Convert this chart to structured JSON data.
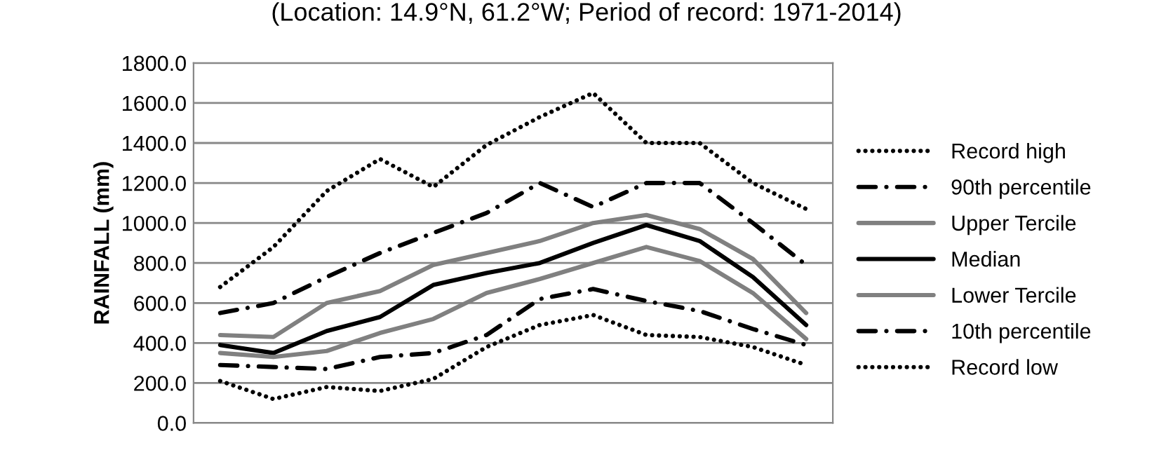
{
  "chart_data": {
    "type": "line",
    "title": "(Location: 14.9°N, 61.2°W; Period of record: 1971-2014)",
    "ylabel": "RAINFALL (mm)",
    "categories": [
      null,
      null,
      null,
      null,
      null,
      null,
      null,
      null,
      null,
      null,
      null,
      null
    ],
    "series": [
      {
        "name": "Record high",
        "color": "#000000",
        "line_style": "dotted",
        "values": [
          680,
          880,
          1160,
          1320,
          1180,
          1390,
          1530,
          1650,
          1400,
          1400,
          1200,
          1070
        ]
      },
      {
        "name": "90th percentile",
        "color": "#000000",
        "line_style": "dashdot",
        "values": [
          550,
          600,
          730,
          850,
          950,
          1050,
          1200,
          1080,
          1200,
          1200,
          1000,
          790
        ]
      },
      {
        "name": "Upper Tercile",
        "color": "#808080",
        "line_style": "solid",
        "values": [
          440,
          430,
          600,
          660,
          790,
          850,
          910,
          1000,
          1040,
          970,
          820,
          550
        ]
      },
      {
        "name": "Median",
        "color": "#000000",
        "line_style": "solid",
        "values": [
          390,
          350,
          460,
          530,
          690,
          750,
          800,
          900,
          990,
          910,
          730,
          490
        ]
      },
      {
        "name": "Lower Tercile",
        "color": "#808080",
        "line_style": "solid",
        "values": [
          350,
          330,
          360,
          450,
          520,
          650,
          720,
          800,
          880,
          810,
          650,
          420
        ]
      },
      {
        "name": "10th percentile",
        "color": "#000000",
        "line_style": "dashdot",
        "values": [
          290,
          280,
          270,
          330,
          350,
          440,
          620,
          670,
          610,
          560,
          470,
          390
        ]
      },
      {
        "name": "Record low",
        "color": "#000000",
        "line_style": "dotted",
        "values": [
          210,
          120,
          180,
          160,
          220,
          380,
          490,
          540,
          440,
          430,
          380,
          290
        ]
      }
    ],
    "ylim": [
      0,
      1800
    ],
    "yticks": [
      {
        "value": 0,
        "label": "0.0"
      },
      {
        "value": 200,
        "label": "200.0"
      },
      {
        "value": 400,
        "label": "400.0"
      },
      {
        "value": 600,
        "label": "600.0"
      },
      {
        "value": 800,
        "label": "800.0"
      },
      {
        "value": 1000,
        "label": "1000.0"
      },
      {
        "value": 1200,
        "label": "1200.0"
      },
      {
        "value": 1400,
        "label": "1400.0"
      },
      {
        "value": 1600,
        "label": "1600.0"
      },
      {
        "value": 1800,
        "label": "1800.0"
      }
    ],
    "grid": "y",
    "legend": "right",
    "marker": "none"
  }
}
